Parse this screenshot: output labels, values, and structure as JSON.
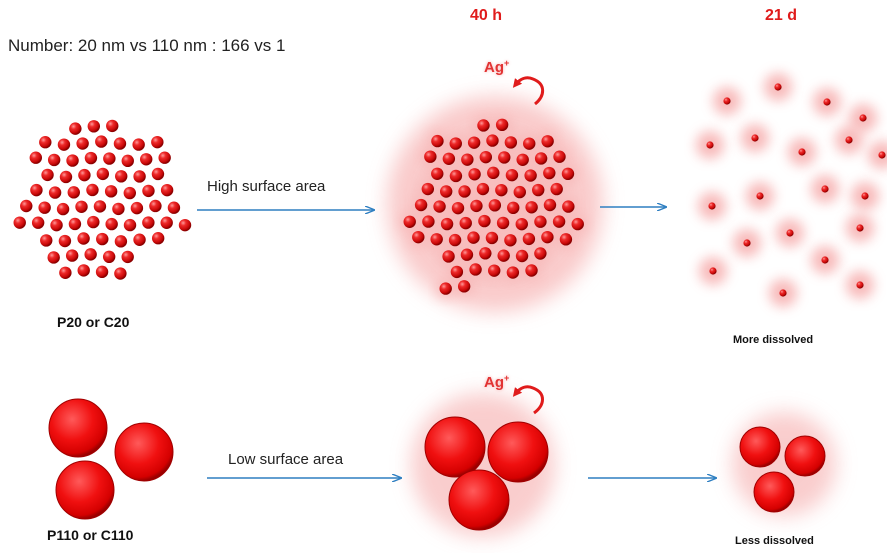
{
  "title": "Number: 20 nm vs 110 nm : 166 vs 1",
  "headers": {
    "time_1": "40 h",
    "time_2": "21 d"
  },
  "rows": [
    {
      "sample_label": "P20 or C20",
      "process_label": "High surface area",
      "result_label": "More dissolved",
      "ion_label": "Ag",
      "ion_charge": "+"
    },
    {
      "sample_label": "P110 or C110",
      "process_label": "Low surface area",
      "result_label": "Less dissolved",
      "ion_label": "Ag",
      "ion_charge": "+"
    }
  ],
  "colors": {
    "particle": "#e01010",
    "glow": "#f7a8a8",
    "arrow": "#2f7fc1",
    "ion_arrow": "#e01b1b",
    "header": "#e01b1b"
  }
}
